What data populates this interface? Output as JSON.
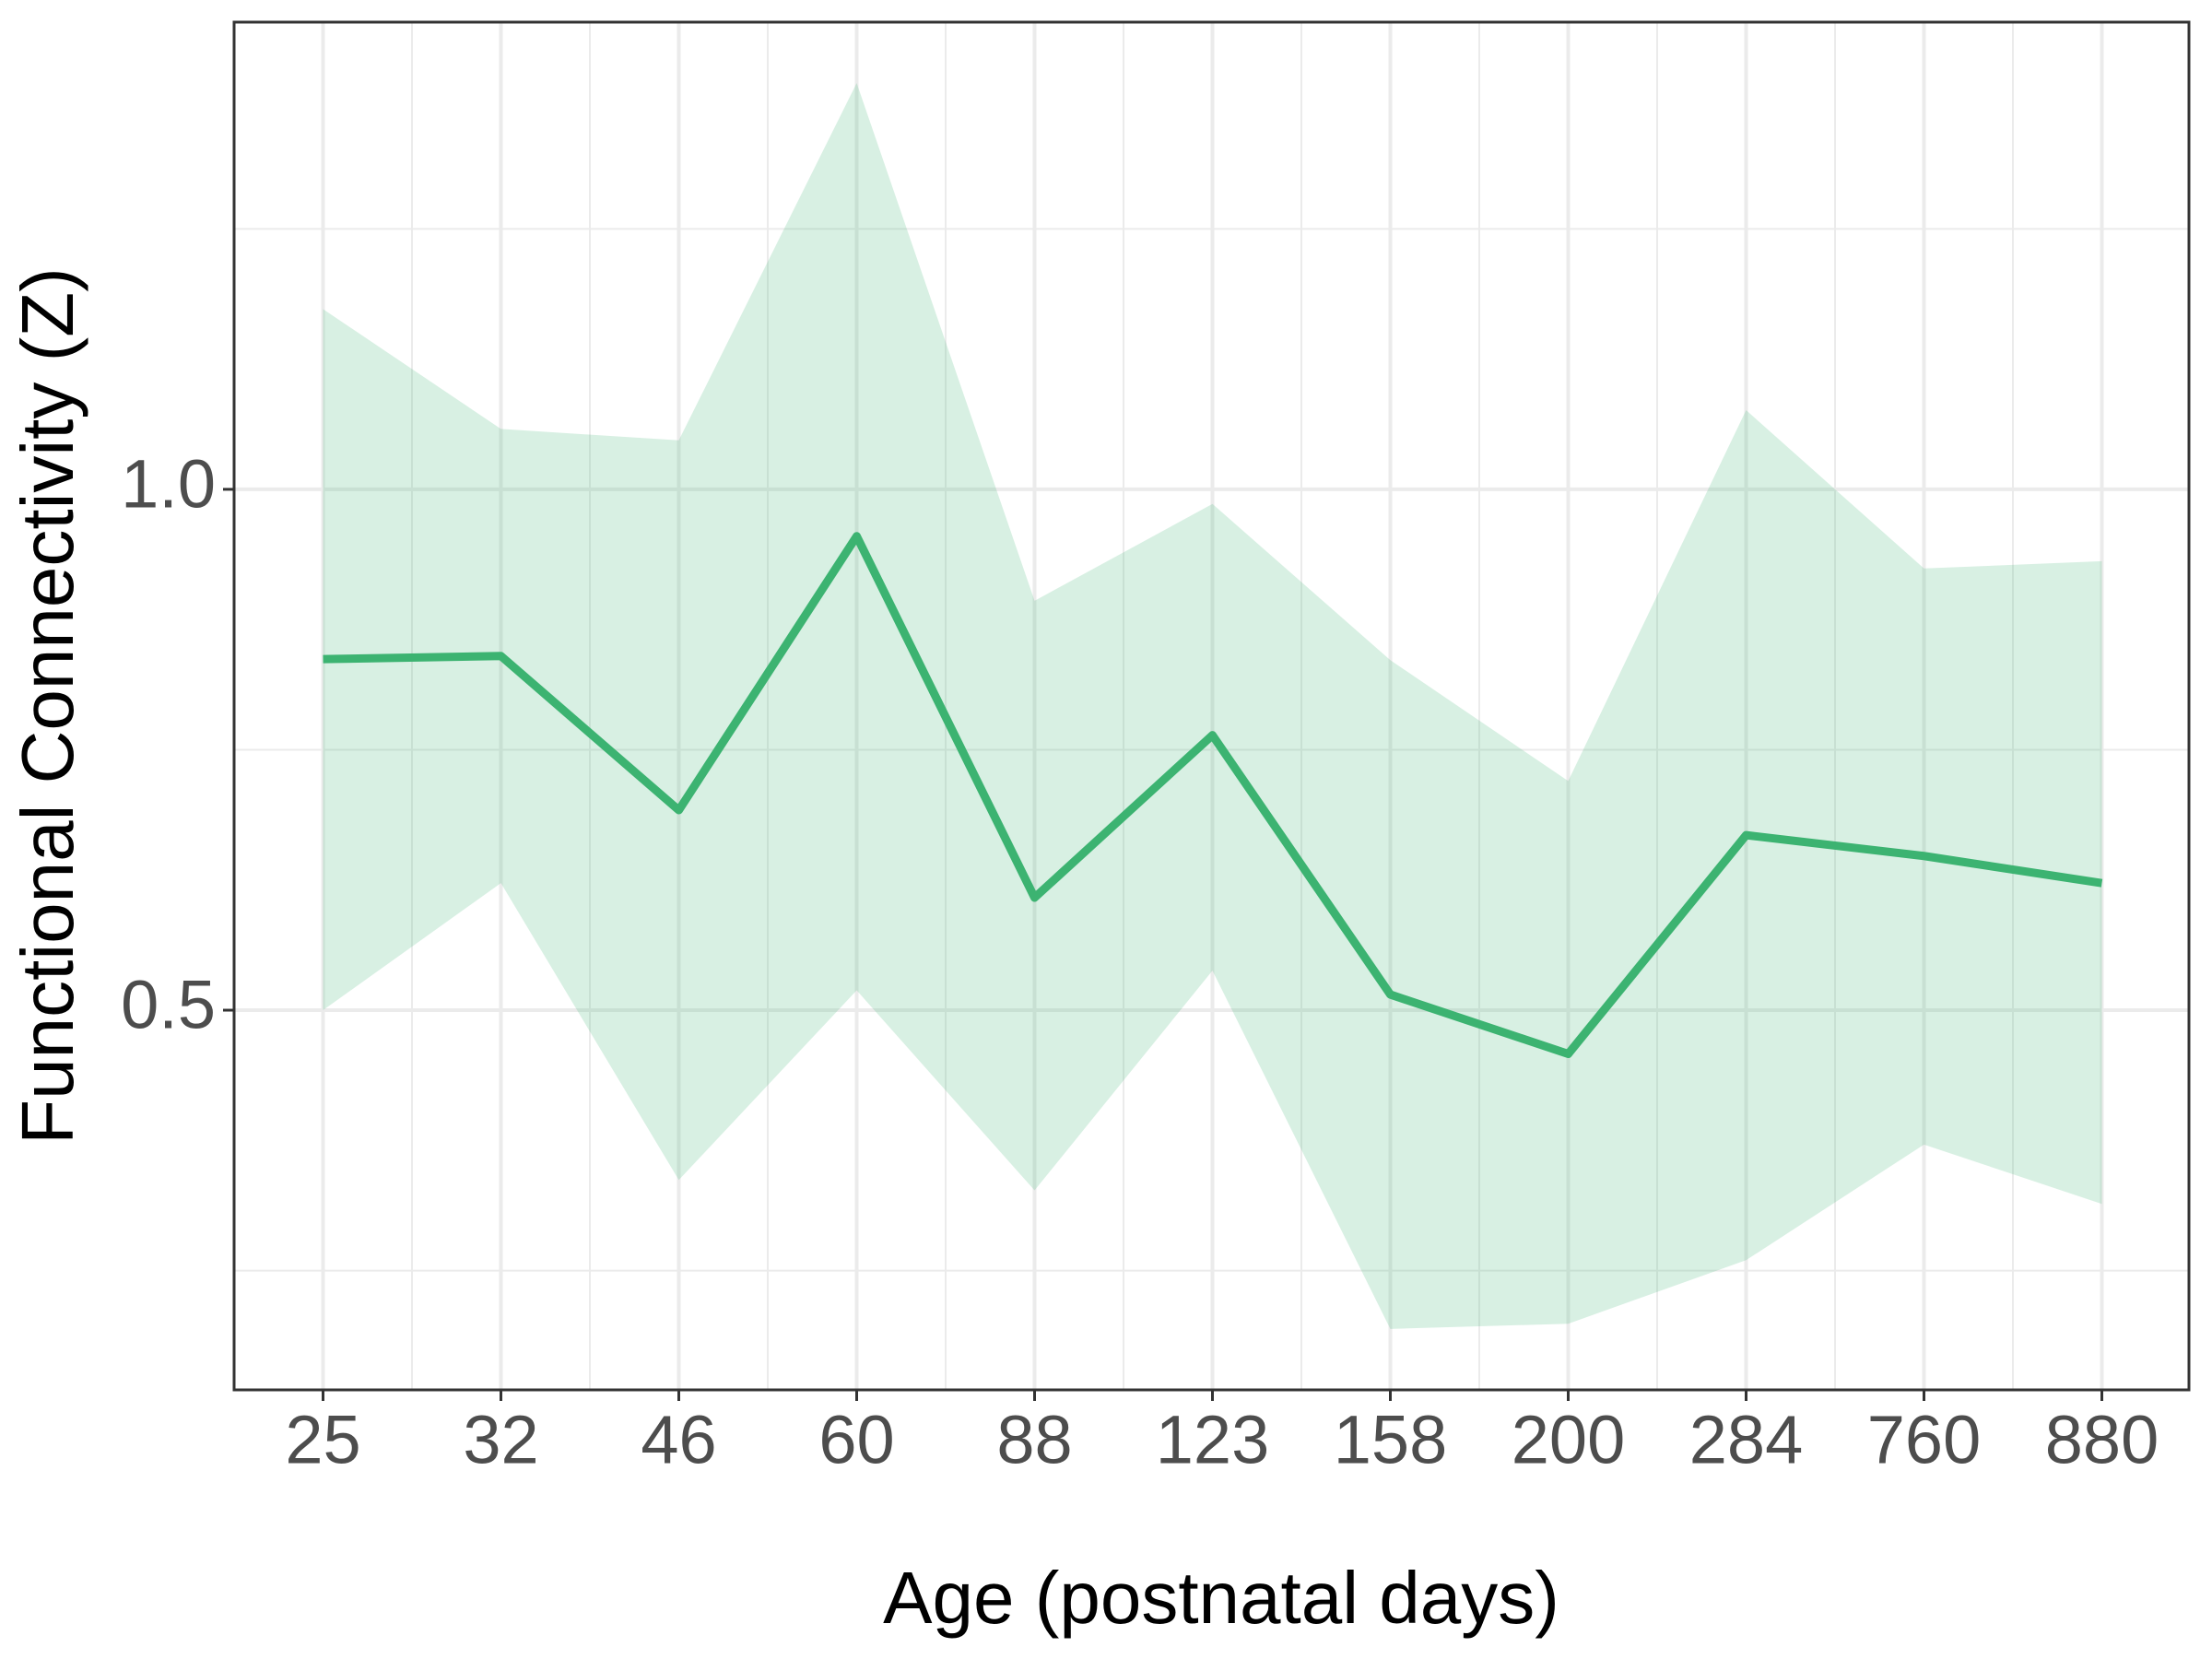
{
  "chart_data": {
    "type": "line",
    "x_label": "Age (postnatal days)",
    "y_label": "Functional Connectivity (Z)",
    "categories": [
      "25",
      "32",
      "46",
      "60",
      "88",
      "123",
      "158",
      "200",
      "284",
      "760",
      "880"
    ],
    "values": [
      0.837,
      0.84,
      0.692,
      0.955,
      0.608,
      0.764,
      0.515,
      0.458,
      0.668,
      0.648,
      0.622
    ],
    "ci_upper": [
      1.173,
      1.058,
      1.047,
      1.39,
      0.893,
      0.986,
      0.836,
      0.72,
      1.076,
      0.924,
      0.931
    ],
    "ci_lower": [
      0.5,
      0.622,
      0.337,
      0.519,
      0.327,
      0.538,
      0.194,
      0.199,
      0.26,
      0.371,
      0.314
    ],
    "color": "#3cb371",
    "ylim": [
      0.1355,
      1.4485
    ],
    "yticks": [
      {
        "value": 0.5,
        "label": "0.5"
      },
      {
        "value": 1.0,
        "label": "1.0"
      }
    ],
    "yticks_minor": [
      0.25,
      0.75,
      1.25
    ],
    "grid": true
  }
}
